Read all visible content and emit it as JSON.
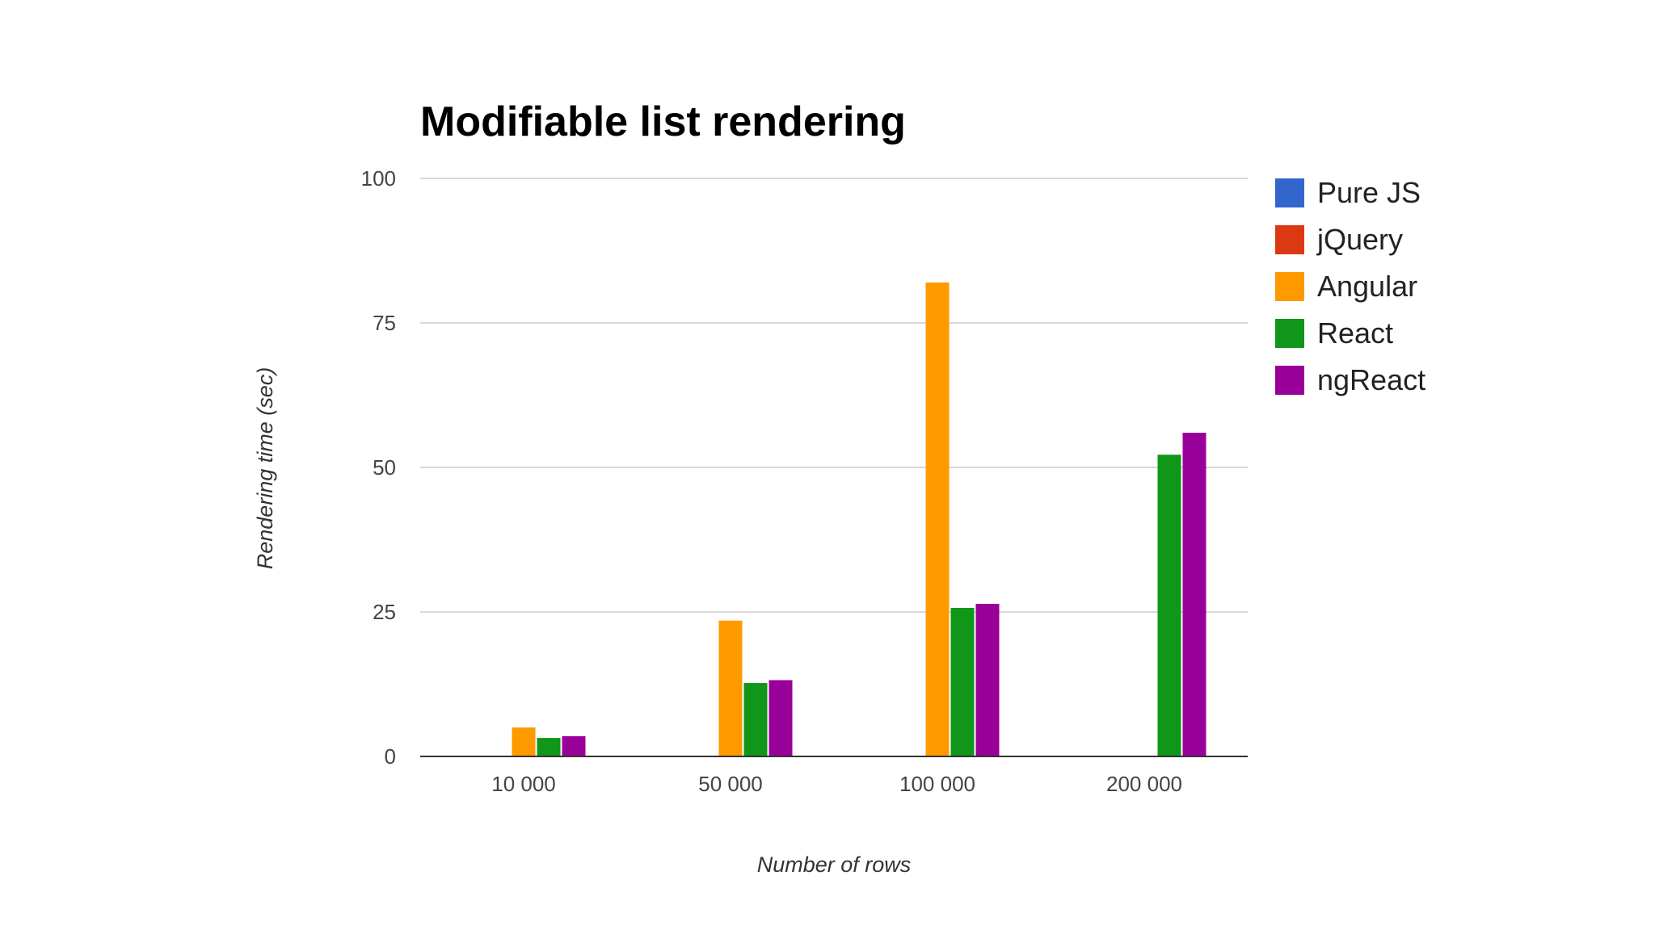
{
  "chart_data": {
    "type": "bar",
    "title": "Modifiable list rendering",
    "xlabel": "Number of rows",
    "ylabel": "Rendering time (sec)",
    "categories": [
      "10 000",
      "50 000",
      "100 000",
      "200 000"
    ],
    "ylim": [
      0,
      100
    ],
    "yticks": [
      0,
      25,
      50,
      75,
      100
    ],
    "grid": true,
    "legend_position": "right",
    "series": [
      {
        "name": "Pure JS",
        "color": "#3366cc",
        "values": [
          0,
          0,
          0,
          0
        ]
      },
      {
        "name": "jQuery",
        "color": "#dc3912",
        "values": [
          0,
          0,
          0,
          0
        ]
      },
      {
        "name": "Angular",
        "color": "#ff9900",
        "values": [
          5,
          23.5,
          82,
          0
        ]
      },
      {
        "name": "React",
        "color": "#109618",
        "values": [
          3.2,
          12.7,
          25.7,
          52.2
        ]
      },
      {
        "name": "ngReact",
        "color": "#990099",
        "values": [
          3.5,
          13.2,
          26.4,
          56
        ]
      }
    ]
  }
}
